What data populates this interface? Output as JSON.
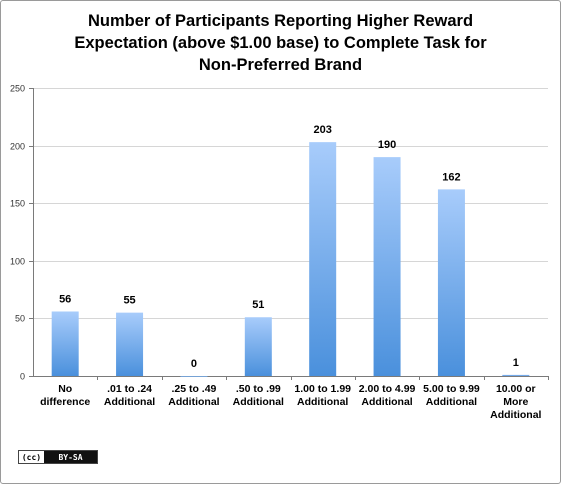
{
  "chart_data": {
    "type": "bar",
    "title_lines": [
      "Number of Participants Reporting Higher Reward",
      "Expectation (above $1.00 base) to Complete Task for",
      "Non-Preferred Brand"
    ],
    "categories": [
      [
        "No",
        "difference"
      ],
      [
        ".01 to .24",
        "Additional"
      ],
      [
        ".25 to .49",
        "Additional"
      ],
      [
        ".50 to .99",
        "Additional"
      ],
      [
        "1.00 to 1.99",
        "Additional"
      ],
      [
        "2.00 to 4.99",
        "Additional"
      ],
      [
        "5.00 to  9.99",
        "Additional"
      ],
      [
        "10.00 or",
        "More",
        "Additional"
      ]
    ],
    "values": [
      56,
      55,
      0,
      51,
      203,
      190,
      162,
      1
    ],
    "data_labels": [
      "56",
      "55",
      "0",
      "51",
      "203",
      "190",
      "162",
      "1"
    ],
    "ylim": [
      0,
      250
    ],
    "yticks": [
      0,
      50,
      100,
      150,
      200,
      250
    ],
    "ytick_labels": [
      "0",
      "50",
      "100",
      "150",
      "200",
      "250"
    ],
    "grid": true,
    "xlabel": "",
    "ylabel": "",
    "colors": {
      "bar_top": "#a8ccfb",
      "bar_bottom": "#4a90dc",
      "grid": "#d6d6d6",
      "axis": "#7a7a7a"
    }
  },
  "license_badge": {
    "left": "(cc)",
    "right": "BY-SA"
  }
}
